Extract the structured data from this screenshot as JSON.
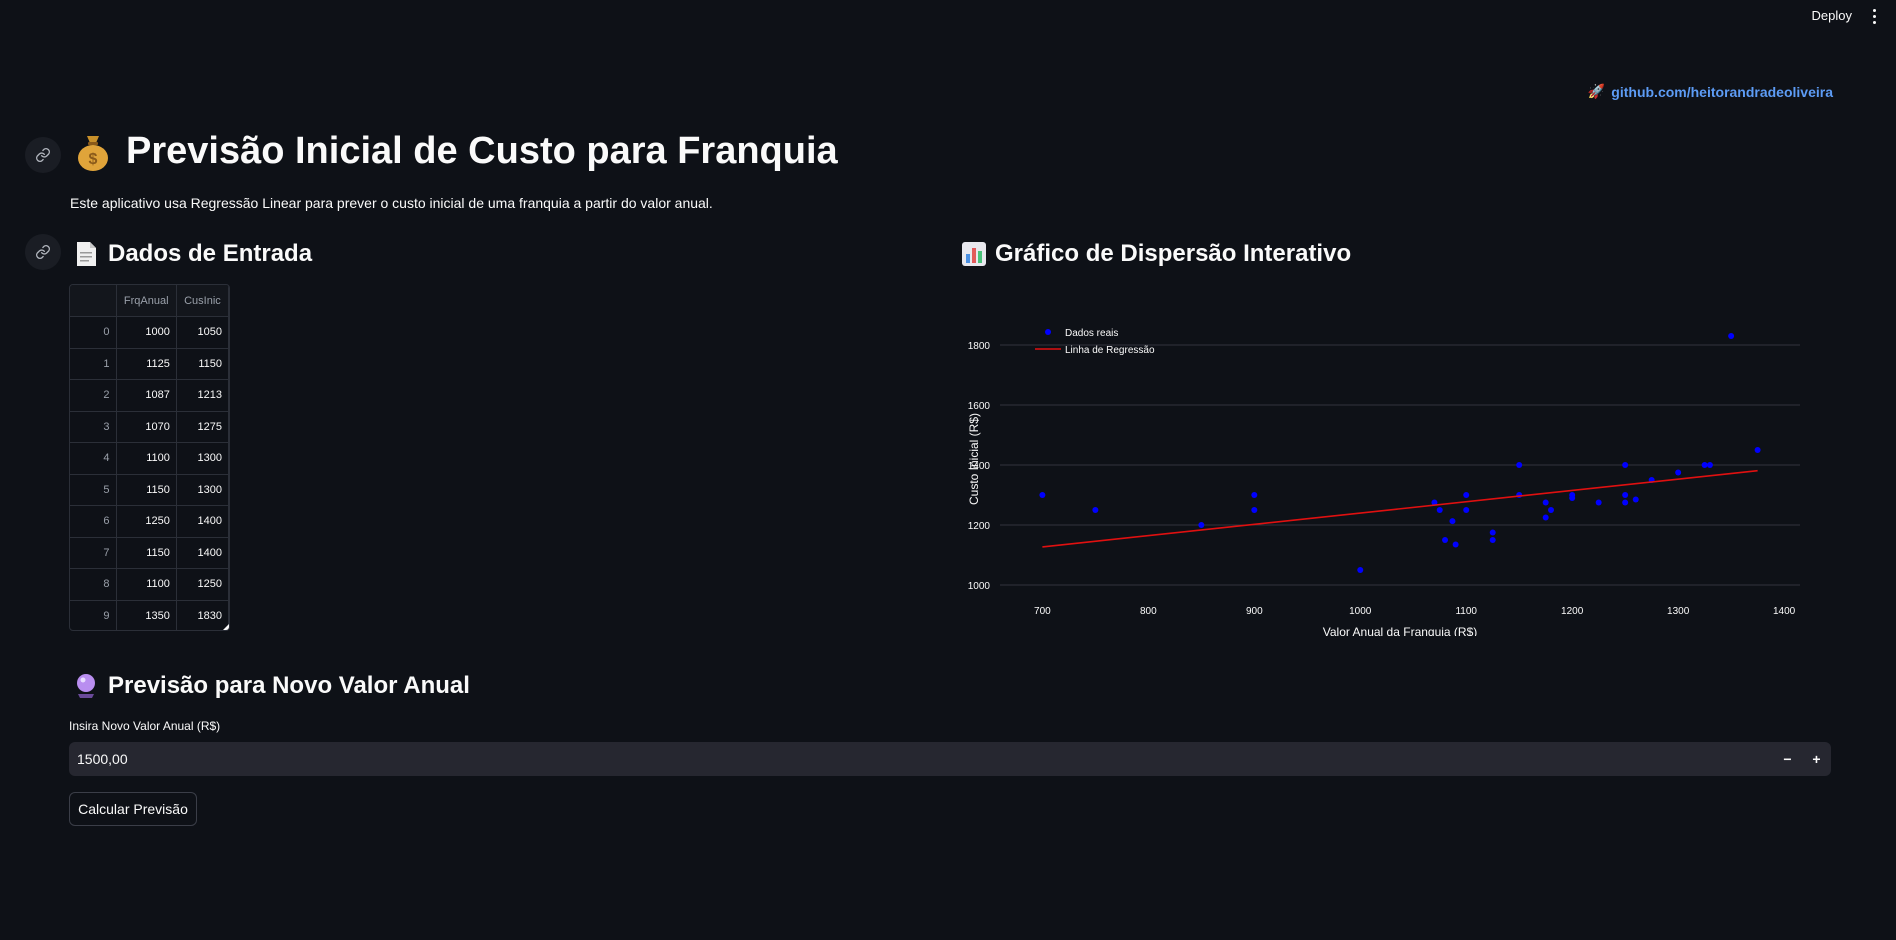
{
  "toolbar": {
    "deploy_label": "Deploy",
    "menu_icon": "more-vertical-icon"
  },
  "github": {
    "emoji": "🚀",
    "label": "github.com/heitorandradeoliveira"
  },
  "title": {
    "emoji": "💰",
    "text": "Previsão Inicial de Custo para Franquia"
  },
  "subtitle": "Este aplicativo usa Regressão Linear para prever o custo inicial de uma franquia a partir do valor anual.",
  "input_section": {
    "heading": "Dados de Entrada",
    "icon": "document-icon",
    "columns": [
      "",
      "FrqAnual",
      "CusInic"
    ],
    "rows": [
      [
        "0",
        "1000",
        "1050"
      ],
      [
        "1",
        "1125",
        "1150"
      ],
      [
        "2",
        "1087",
        "1213"
      ],
      [
        "3",
        "1070",
        "1275"
      ],
      [
        "4",
        "1100",
        "1300"
      ],
      [
        "5",
        "1150",
        "1300"
      ],
      [
        "6",
        "1250",
        "1400"
      ],
      [
        "7",
        "1150",
        "1400"
      ],
      [
        "8",
        "1100",
        "1250"
      ],
      [
        "9",
        "1350",
        "1830"
      ]
    ]
  },
  "chart_section": {
    "heading": "Gráfico de Dispersão Interativo",
    "icon": "bar-chart-icon"
  },
  "chart_data": {
    "type": "scatter",
    "xlabel": "Valor Anual da Franquia (R$)",
    "ylabel": "Custo Inicial (R$)",
    "xlim": [
      660,
      1415
    ],
    "ylim": [
      990,
      1850
    ],
    "xticks": [
      700,
      800,
      900,
      1000,
      1100,
      1200,
      1300,
      1400
    ],
    "yticks": [
      1000,
      1200,
      1400,
      1600,
      1800
    ],
    "grid": true,
    "legend_position": "top-left",
    "series": [
      {
        "name": "Dados reais",
        "color": "#0000ff",
        "points": [
          [
            700,
            1300
          ],
          [
            750,
            1250
          ],
          [
            850,
            1200
          ],
          [
            900,
            1300
          ],
          [
            900,
            1250
          ],
          [
            1000,
            1050
          ],
          [
            1070,
            1275
          ],
          [
            1075,
            1250
          ],
          [
            1080,
            1150
          ],
          [
            1087,
            1213
          ],
          [
            1090,
            1135
          ],
          [
            1100,
            1300
          ],
          [
            1100,
            1250
          ],
          [
            1125,
            1175
          ],
          [
            1125,
            1150
          ],
          [
            1150,
            1400
          ],
          [
            1150,
            1300
          ],
          [
            1175,
            1275
          ],
          [
            1175,
            1225
          ],
          [
            1180,
            1250
          ],
          [
            1200,
            1300
          ],
          [
            1200,
            1290
          ],
          [
            1225,
            1275
          ],
          [
            1250,
            1400
          ],
          [
            1250,
            1300
          ],
          [
            1250,
            1275
          ],
          [
            1260,
            1285
          ],
          [
            1275,
            1350
          ],
          [
            1300,
            1375
          ],
          [
            1325,
            1400
          ],
          [
            1330,
            1400
          ],
          [
            1350,
            1830
          ],
          [
            1375,
            1450
          ]
        ]
      },
      {
        "name": "Linha de Regressão",
        "color": "#e01010",
        "line": [
          [
            700,
            1127
          ],
          [
            1375,
            1381
          ]
        ]
      }
    ]
  },
  "prediction_section": {
    "heading": "Previsão para Novo Valor Anual",
    "icon": "crystal-ball-icon",
    "input_label": "Insira Novo Valor Anual (R$)",
    "input_value": "1500,00",
    "decrement": "−",
    "increment": "+",
    "button_label": "Calcular Previsão"
  }
}
